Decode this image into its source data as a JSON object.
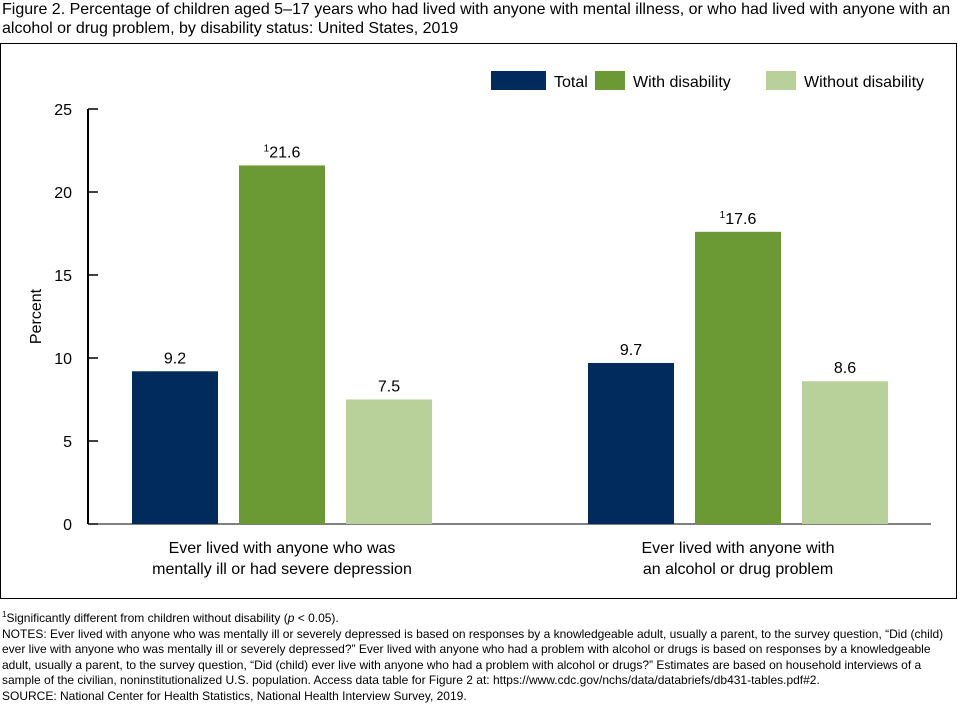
{
  "figure_title": "Figure 2. Percentage of children aged 5–17 years who had lived with anyone with mental illness, or who had lived with anyone with an alcohol or drug problem, by disability status: United States, 2019",
  "chart_data": {
    "type": "bar",
    "title": "",
    "xlabel": "",
    "ylabel": "Percent",
    "ylim": [
      0,
      25
    ],
    "yticks": [
      "0",
      "5",
      "10",
      "15",
      "20",
      "25"
    ],
    "ytick_values": [
      0,
      5,
      10,
      15,
      20,
      25
    ],
    "grid": false,
    "legend_position": "top-right",
    "categories": [
      [
        "Ever lived with anyone who was",
        "mentally ill or had severe depression"
      ],
      [
        "Ever lived with anyone with",
        "an alcohol or drug problem"
      ]
    ],
    "series": [
      {
        "name": "Total",
        "color": "#002b5c",
        "values": [
          9.2,
          9.7
        ],
        "labels": [
          "9.2",
          "9.7"
        ],
        "marks": [
          "",
          ""
        ]
      },
      {
        "name": "With disability",
        "color": "#6b9a35",
        "values": [
          21.6,
          17.6
        ],
        "labels": [
          "21.6",
          "17.6"
        ],
        "marks": [
          "1",
          "1"
        ]
      },
      {
        "name": "Without disability",
        "color": "#b8d19a",
        "values": [
          7.5,
          8.6
        ],
        "labels": [
          "7.5",
          "8.6"
        ],
        "marks": [
          "",
          ""
        ]
      }
    ]
  },
  "footnotes": {
    "significance_sup": "1",
    "significance_pre": "Significantly different from children without disability (",
    "significance_p": "p",
    "significance_post": " < 0.05).",
    "notes": "NOTES: Ever lived with anyone who was mentally ill or severely depressed is based on responses by a knowledgeable adult, usually a parent, to the survey question, “Did (child) ever live with anyone who was mentally ill or severely depressed?” Ever lived with anyone who had a problem with alcohol or drugs is based on responses by a knowledgeable adult, usually a parent, to the survey question, “Did (child) ever live with anyone who had a problem with alcohol or drugs?” Estimates are based on household interviews of a sample of the civilian, noninstitutionalized U.S. population. Access data table for Figure 2 at: https://www.cdc.gov/nchs/data/databriefs/db431-tables.pdf#2.",
    "source": "SOURCE: National Center for Health Statistics, National Health Interview Survey, 2019."
  }
}
